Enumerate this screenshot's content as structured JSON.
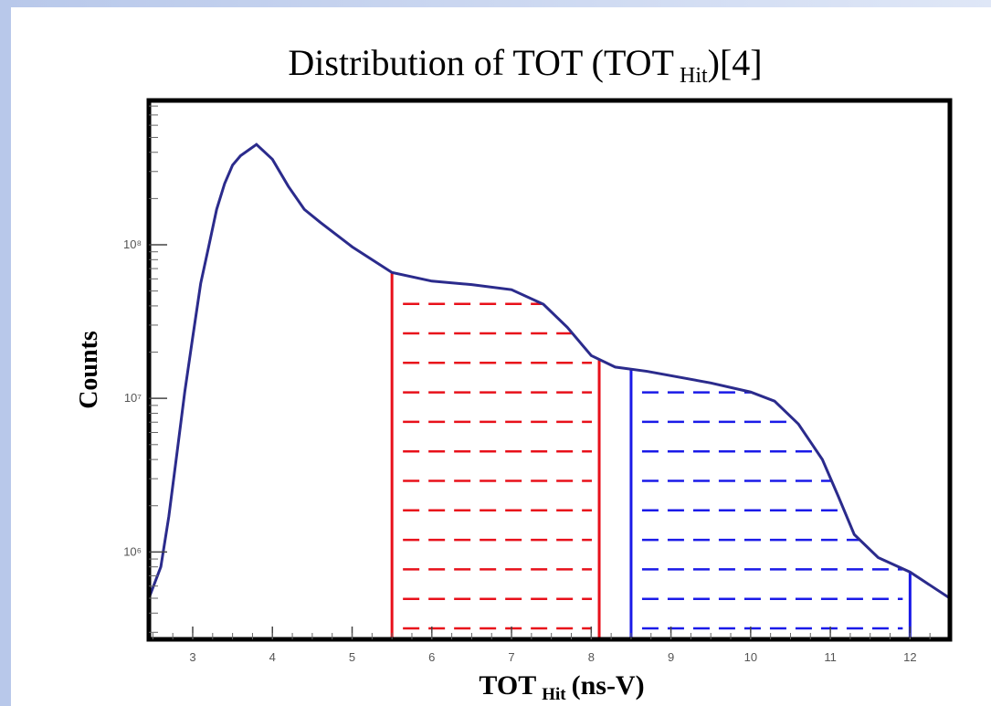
{
  "chart_data": {
    "type": "line",
    "title": "Distribution of TOT (TOT",
    "title_sub": "Hit",
    "title_end": ")[4]",
    "xlabel": "TOT",
    "xlabel_sub": "Hit",
    "xlabel_end": "(ns-V)",
    "ylabel": "Counts",
    "log_y": true,
    "xlim": [
      2.45,
      12.5
    ],
    "ylim": [
      270000,
      870000000
    ],
    "xticks": [
      3,
      4,
      5,
      6,
      7,
      8,
      9,
      10,
      11,
      12
    ],
    "yticks": [
      {
        "value": 1000000,
        "label": "10⁶"
      },
      {
        "value": 10000000,
        "label": "10⁷"
      },
      {
        "value": 100000000,
        "label": "10⁸"
      }
    ],
    "x": [
      2.45,
      2.6,
      2.7,
      2.8,
      2.9,
      3.0,
      3.1,
      3.2,
      3.3,
      3.4,
      3.5,
      3.6,
      3.8,
      4.0,
      4.2,
      4.4,
      4.6,
      5.0,
      5.5,
      6.0,
      6.5,
      7.0,
      7.4,
      7.7,
      8.0,
      8.3,
      8.7,
      9.5,
      10.0,
      10.3,
      10.6,
      10.9,
      11.1,
      11.3,
      11.6,
      12.0,
      12.5
    ],
    "series": [
      {
        "color": "#2b2b8c",
        "values": [
          500000,
          800000,
          1700000,
          4300000,
          11000000,
          25000000,
          56000000,
          97000000,
          170000000,
          250000000,
          330000000,
          380000000,
          450000000,
          360000000,
          240000000,
          170000000,
          140000000,
          97000000,
          66000000,
          58000000,
          55000000,
          51000000,
          41000000,
          29000000,
          19000000,
          16000000,
          15000000,
          12600000,
          11000000,
          9600000,
          6800000,
          4000000,
          2300000,
          1300000,
          920000,
          740000,
          500000
        ]
      }
    ],
    "regions": [
      {
        "x": [
          5.5,
          8.1
        ],
        "color": "#e8101a"
      },
      {
        "x": [
          8.5,
          12.0
        ],
        "color": "#1a1ae8"
      }
    ]
  }
}
